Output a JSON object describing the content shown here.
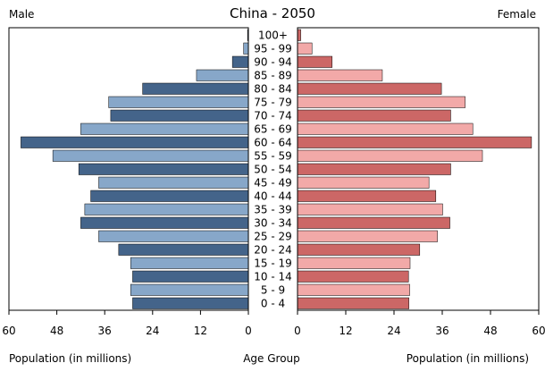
{
  "chart_data": {
    "type": "bar",
    "title": "China - 2050",
    "left_label": "Male",
    "right_label": "Female",
    "xlabel_left": "Population (in millions)",
    "xlabel_center": "Age Group",
    "xlabel_right": "Population (in millions)",
    "xlim": [
      0,
      60
    ],
    "ticks": [
      "60",
      "48",
      "36",
      "24",
      "12",
      "0"
    ],
    "ticks_right": [
      "0",
      "12",
      "24",
      "36",
      "48",
      "60"
    ],
    "tick_values": [
      60,
      48,
      36,
      24,
      12,
      0
    ],
    "tick_values_right": [
      0,
      12,
      24,
      36,
      48,
      60
    ],
    "categories": [
      "100+",
      "95 - 99",
      "90 - 94",
      "85 - 89",
      "80 - 84",
      "75 - 79",
      "70 - 74",
      "65 - 69",
      "60 - 64",
      "55 - 59",
      "50 - 54",
      "45 - 49",
      "40 - 44",
      "35 - 39",
      "30 - 34",
      "25 - 29",
      "20 - 24",
      "15 - 19",
      "10 - 14",
      "5 - 9",
      "0 - 4"
    ],
    "series": [
      {
        "name": "Male",
        "values": [
          0.2,
          1.2,
          4.0,
          13.0,
          26.5,
          35.0,
          34.5,
          42.0,
          57.0,
          49.0,
          42.5,
          37.5,
          39.5,
          41.0,
          42.0,
          37.5,
          32.5,
          29.5,
          29.0,
          29.5,
          29.0
        ]
      },
      {
        "name": "Female",
        "values": [
          0.8,
          3.6,
          8.6,
          21.1,
          35.8,
          41.7,
          38.1,
          43.6,
          58.2,
          46.0,
          38.1,
          32.7,
          34.4,
          36.1,
          37.9,
          34.8,
          30.4,
          28.0,
          27.6,
          27.9,
          27.7
        ]
      }
    ],
    "colors": {
      "male_dark": "#44648a",
      "male_light": "#87a7c9",
      "female_dark": "#cc6766",
      "female_light": "#f2a9a8",
      "edge": "#000000"
    },
    "grid": false
  }
}
